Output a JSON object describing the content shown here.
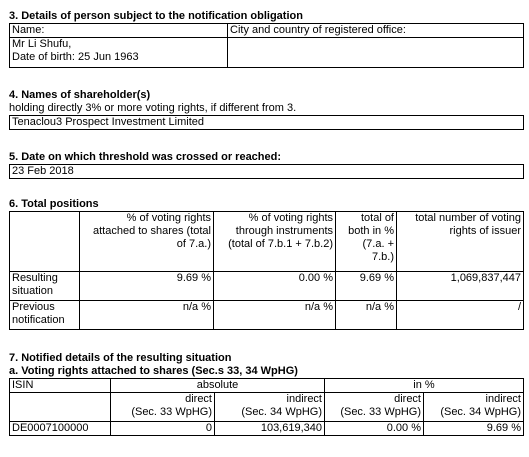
{
  "s3": {
    "title": "3. Details of person subject to the notification obligation",
    "name_header": "Name:",
    "city_header": "City and country of registered office:",
    "name_line1": "Mr Li Shufu,",
    "name_line2": "Date of birth: 25 Jun 1963",
    "city_value": ""
  },
  "s4": {
    "title": "4. Names of shareholder(s)",
    "note": "holding directly 3% or more voting rights, if different from 3.",
    "value": "Tenaclou3 Prospect Investment Limited"
  },
  "s5": {
    "title": "5. Date on which threshold was crossed or reached:",
    "value": "23 Feb 2018"
  },
  "s6": {
    "title": "6. Total positions",
    "headers": {
      "col1": "% of voting rights attached to shares (total of 7.a.)",
      "col2": "% of voting rights through instruments (total of 7.b.1 + 7.b.2)",
      "col3": "total of both in % (7.a. + 7.b.)",
      "col4": "total number of voting rights of issuer"
    },
    "rows": [
      {
        "label": "Resulting situation",
        "c1": "9.69 %",
        "c2": "0.00 %",
        "c3": "9.69 %",
        "c4": "1,069,837,447"
      },
      {
        "label": "Previous notification",
        "c1": "n/a %",
        "c2": "n/a %",
        "c3": "n/a %",
        "c4": "/"
      }
    ]
  },
  "s7": {
    "title": "7. Notified details of the resulting situation",
    "sub_a": "a. Voting rights attached to shares (Sec.s 33, 34 WpHG)",
    "isin_header": "ISIN",
    "absolute_header": "absolute",
    "percent_header": "in %",
    "direct_label": "direct",
    "indirect_label": "indirect",
    "sec33": "(Sec. 33 WpHG)",
    "sec34": "(Sec. 34 WpHG)",
    "row": {
      "isin": "DE0007100000",
      "abs_direct": "0",
      "abs_indirect": "103,619,340",
      "pct_direct": "0.00 %",
      "pct_indirect": "9.69 %"
    }
  }
}
